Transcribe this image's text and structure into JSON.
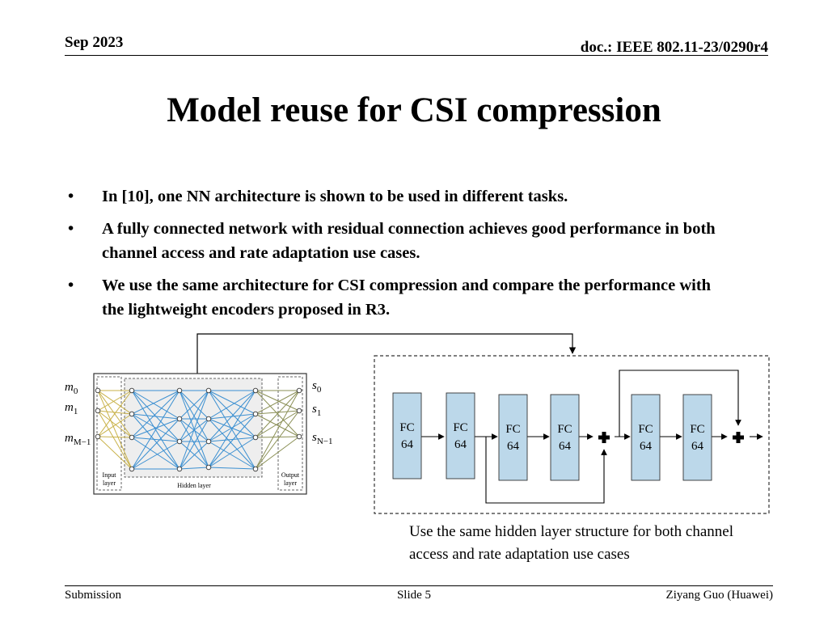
{
  "header": {
    "date": "Sep 2023",
    "doc_id": "doc.: IEEE 802.11-23/0290r4"
  },
  "slide": {
    "title": "Model reuse for CSI compression",
    "bullets": [
      "In [10], one NN architecture is shown to be used in different tasks.",
      "A fully connected network with residual connection achieves good performance in both channel access and rate adaptation use cases.",
      "We use the same architecture for CSI compression and compare the performance with the lightweight encoders proposed in R3."
    ],
    "bullet_symbol": "•"
  },
  "network_figure": {
    "inputs": [
      "m",
      "m",
      "m"
    ],
    "input_subs": [
      "0",
      "1",
      "M−1"
    ],
    "outputs": [
      "s",
      "s",
      "s"
    ],
    "output_subs": [
      "0",
      "1",
      "N−1"
    ],
    "input_layer_label": [
      "Input",
      "layer"
    ],
    "hidden_layer_label": "Hidden layer",
    "output_layer_label": [
      "Output",
      "layer"
    ],
    "line_colors": [
      "#3a8fd1",
      "#c9b24a",
      "#8a8f55"
    ]
  },
  "residual_figure": {
    "blocks": [
      {
        "name": "FC",
        "size": "64"
      },
      {
        "name": "FC",
        "size": "64"
      },
      {
        "name": "FC",
        "size": "64"
      },
      {
        "name": "FC",
        "size": "64"
      },
      {
        "name": "FC",
        "size": "64"
      },
      {
        "name": "FC",
        "size": "64"
      }
    ],
    "block_fill": "#bcd8ea",
    "add_symbol": "+"
  },
  "caption": "Use the same hidden layer structure for both channel access and rate adaptation use cases",
  "footer": {
    "left": "Submission",
    "center": "Slide 5",
    "right": "Ziyang Guo (Huawei)"
  }
}
